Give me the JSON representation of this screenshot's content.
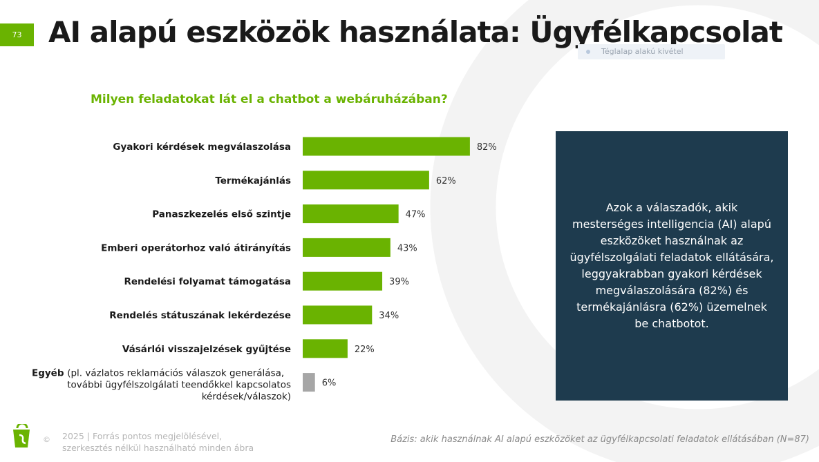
{
  "page": {
    "number": "73"
  },
  "title": "AI alapú eszközök használata: Ügyfélkapcsolat",
  "ghost_label": "Téglalap alakú kivétel",
  "question": "Milyen feladatokat lát el a chatbot a webáruházában?",
  "chart_data": {
    "type": "bar",
    "orientation": "horizontal",
    "categories": [
      "Gyakori kérdések megválaszolása",
      "Termékajánlás",
      "Panaszkezelés első szintje",
      "Emberi operátorhoz való átirányítás",
      "Rendelési folyamat támogatása",
      "Rendelés státuszának lekérdezése",
      "Vásárlói visszajelzések gyűjtése",
      "Egyéb"
    ],
    "values": [
      82,
      62,
      47,
      43,
      39,
      34,
      22,
      6
    ],
    "value_labels": [
      "82%",
      "62%",
      "47%",
      "43%",
      "39%",
      "34%",
      "22%",
      "6%"
    ],
    "other_note": [
      "(pl. vázlatos reklamációs válaszok generálása,",
      "további ügyfélszolgálati teendőkkel kapcsolatos",
      "kérdések/válaszok)"
    ],
    "colors": {
      "main": "#6ab301",
      "other": "#a6a6a6"
    },
    "xlim": [
      0,
      100
    ],
    "grid": false
  },
  "info_box": {
    "text": "Azok a válaszadók, akik mesterséges intelligencia (AI) alapú eszközöket használnak az ügyfélszolgálati feladatok ellátására, leggyakrabban gyakori kérdések megválaszolására (82%) és termékajánlásra (62%) üzemelnek be chatbotot.",
    "background": "#1e3b4e"
  },
  "footer": {
    "copyright": "©",
    "line1": "2025  |  Forrás pontos megjelölésével,",
    "line2": "szerkesztés nélkül használható minden ábra",
    "basis": "Bázis: akik használnak AI alapú eszközöket az ügyfélkapcsolati feladatok ellátásában (N=87)"
  },
  "colors": {
    "accent": "#6ab301",
    "dark": "#1e3b4e",
    "title": "#1a1a1a"
  }
}
